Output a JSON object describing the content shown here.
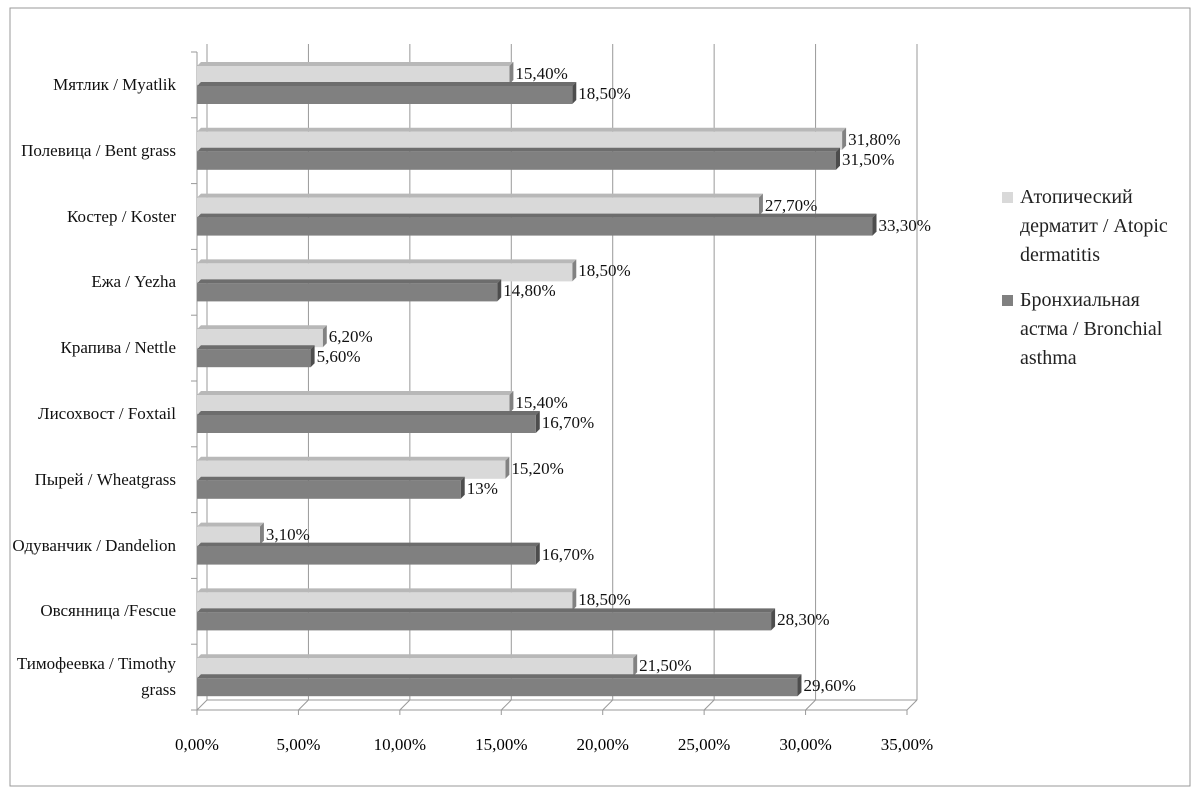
{
  "chart_data": {
    "type": "bar",
    "orientation": "horizontal",
    "categories": [
      "Мятлик / Myatlik",
      "Полевица / Bent grass",
      "Костер / Koster",
      "Ежа / Yezha",
      "Крапива / Nettle",
      "Лисохвост / Foxtail",
      "Пырей / Wheatgrass",
      "Одуванчик / Dandelion",
      "Овсянница /Fescue",
      "Тимофеевка / Timothy grass"
    ],
    "series": [
      {
        "name": "Атопический дерматит / Atopic dermatitis",
        "color": "#d9d9d9",
        "values": [
          15.4,
          31.8,
          27.7,
          18.5,
          6.2,
          15.4,
          15.2,
          3.1,
          18.5,
          21.5
        ],
        "value_labels": [
          "15,40%",
          "31,80%",
          "27,70%",
          "18,50%",
          "6,20%",
          "15,40%",
          "15,20%",
          "3,10%",
          "18,50%",
          "21,50%"
        ]
      },
      {
        "name": "Бронхиальная астма / Bronchial asthma",
        "color": "#808080",
        "values": [
          18.5,
          31.5,
          33.3,
          14.8,
          5.6,
          16.7,
          13,
          16.7,
          28.3,
          29.6
        ],
        "value_labels": [
          "18,50%",
          "31,50%",
          "33,30%",
          "14,80%",
          "5,60%",
          "16,70%",
          "13%",
          "16,70%",
          "28,30%",
          "29,60%"
        ]
      }
    ],
    "xlim": [
      0,
      35
    ],
    "xticks": [
      {
        "value": 0,
        "label": "0,00%"
      },
      {
        "value": 5,
        "label": "5,00%"
      },
      {
        "value": 10,
        "label": "10,00%"
      },
      {
        "value": 15,
        "label": "15,00%"
      },
      {
        "value": 20,
        "label": "20,00%"
      },
      {
        "value": 25,
        "label": "25,00%"
      },
      {
        "value": 30,
        "label": "30,00%"
      },
      {
        "value": 35,
        "label": "35,00%"
      }
    ],
    "grid": true,
    "legend": "right"
  }
}
